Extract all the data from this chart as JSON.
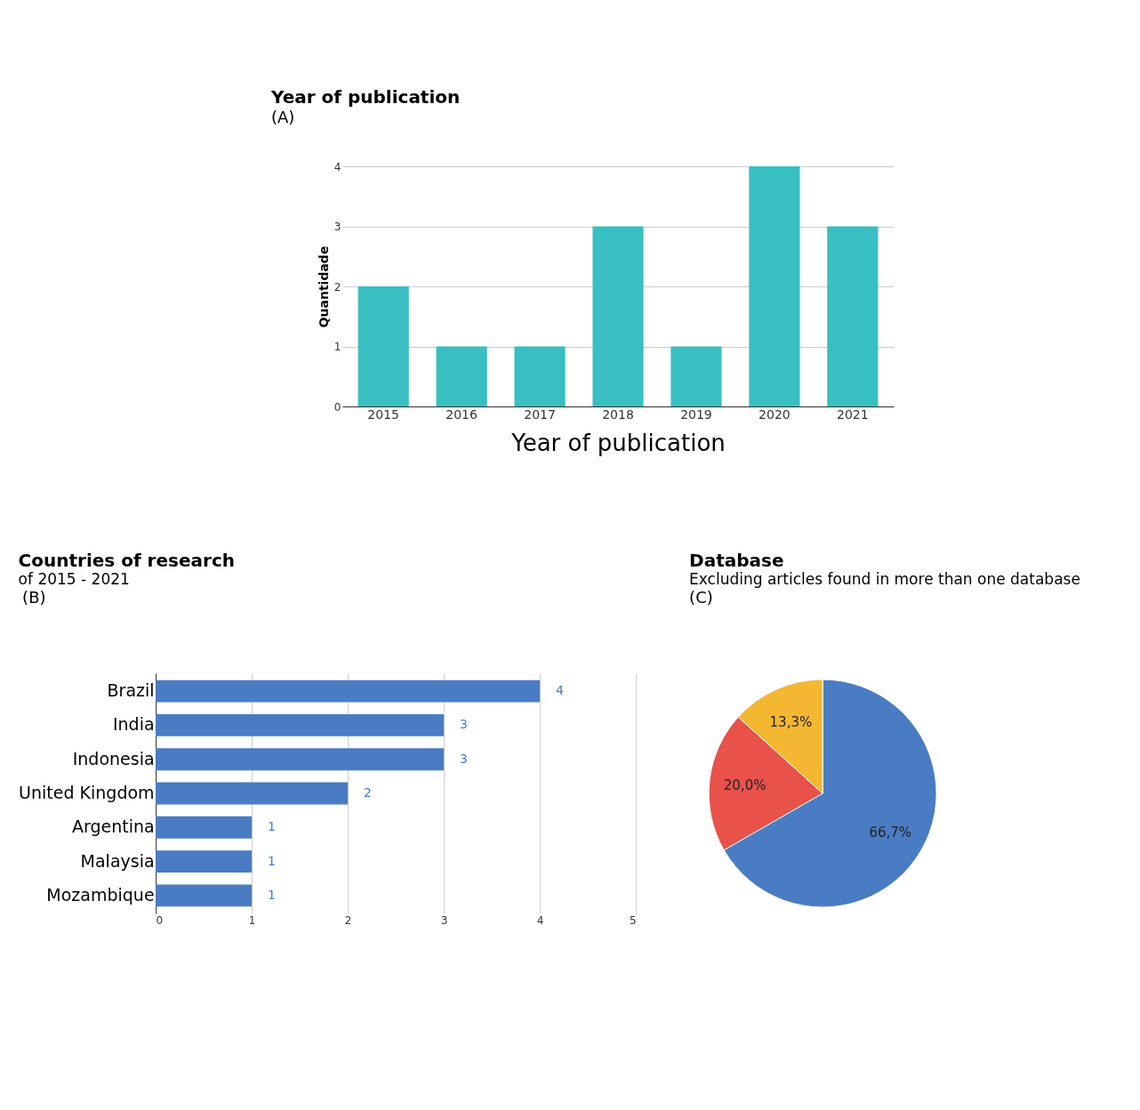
{
  "chart_data": [
    {
      "type": "bar",
      "title": "Year of publication",
      "annotations": [
        "(A)"
      ],
      "xlabel": "Year of publication",
      "ylabel": "Quantidade",
      "categories": [
        "2015",
        "2016",
        "2017",
        "2018",
        "2019",
        "2020",
        "2021"
      ],
      "values": [
        2,
        1,
        1,
        3,
        1,
        4,
        3
      ],
      "color": "#38bfc1",
      "ylim": [
        0,
        4
      ],
      "yticks": [
        0,
        1,
        2,
        3,
        4
      ],
      "grid": "y"
    },
    {
      "type": "bar",
      "orientation": "horizontal",
      "title": "Countries of research",
      "subtitle": "of 2015 - 2021",
      "annotations": [
        "(B)"
      ],
      "categories": [
        "Brazil",
        "India",
        "Indonesia",
        "United Kingdom",
        "Argentina",
        "Malaysia",
        "Mozambique"
      ],
      "values": [
        4,
        3,
        3,
        2,
        1,
        1,
        1
      ],
      "color": "#4a7cc4",
      "xlim": [
        0,
        5
      ],
      "xticks": [
        0,
        1,
        2,
        3,
        4,
        5
      ],
      "grid": "x",
      "data_labels": true
    },
    {
      "type": "pie",
      "title": "Database",
      "subtitle": "Excluding articles found in more than one database",
      "annotations": [
        "(C)"
      ],
      "categories": [
        null,
        null,
        null
      ],
      "values": [
        66.7,
        20.0,
        13.3
      ],
      "colors": [
        "#4a7cc4",
        "#e8524a",
        "#f4b731"
      ],
      "value_labels": [
        "66,7%",
        "20,0%",
        "13,3%"
      ]
    }
  ]
}
